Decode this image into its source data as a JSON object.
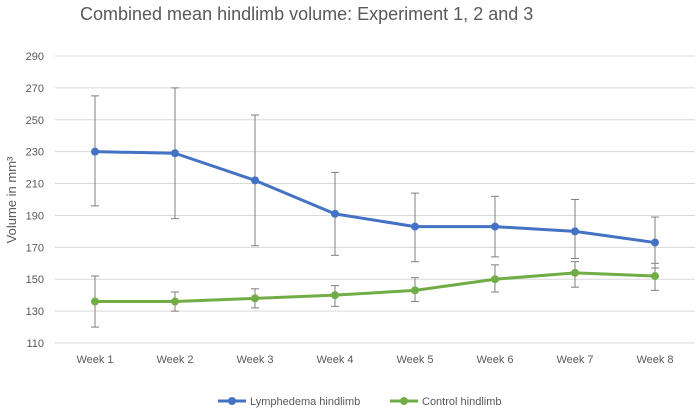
{
  "chart_data": {
    "type": "line",
    "title": "Combined mean hindlimb volume: Experiment 1, 2 and 3",
    "xlabel": "",
    "ylabel": "Volume in mm³",
    "ylim": [
      110,
      290
    ],
    "yticks": [
      110,
      130,
      150,
      170,
      190,
      210,
      230,
      250,
      270,
      290
    ],
    "ytick_labels": [
      "110",
      "130",
      "150",
      "170",
      "190",
      "210",
      "230",
      "250",
      "270",
      "290"
    ],
    "grid": true,
    "legend_position": "bottom",
    "categories": [
      "Week 1",
      "Week 2",
      "Week 3",
      "Week 4",
      "Week 5",
      "Week 6",
      "Week 7",
      "Week 8"
    ],
    "series": [
      {
        "name": "Lymphedema hindlimb",
        "color": "#4472C4",
        "values": [
          230,
          229,
          212,
          191,
          183,
          183,
          180,
          173
        ],
        "err_low": [
          196,
          188,
          171,
          165,
          161,
          164,
          163,
          157
        ],
        "err_high": [
          265,
          270,
          253,
          217,
          204,
          202,
          200,
          189
        ]
      },
      {
        "name": "Control hindlimb",
        "color": "#70AD47",
        "values": [
          136,
          136,
          138,
          140,
          143,
          150,
          154,
          152
        ],
        "err_low": [
          120,
          130,
          132,
          133,
          136,
          142,
          145,
          143
        ],
        "err_high": [
          152,
          142,
          144,
          146,
          151,
          159,
          161,
          160
        ]
      }
    ]
  }
}
